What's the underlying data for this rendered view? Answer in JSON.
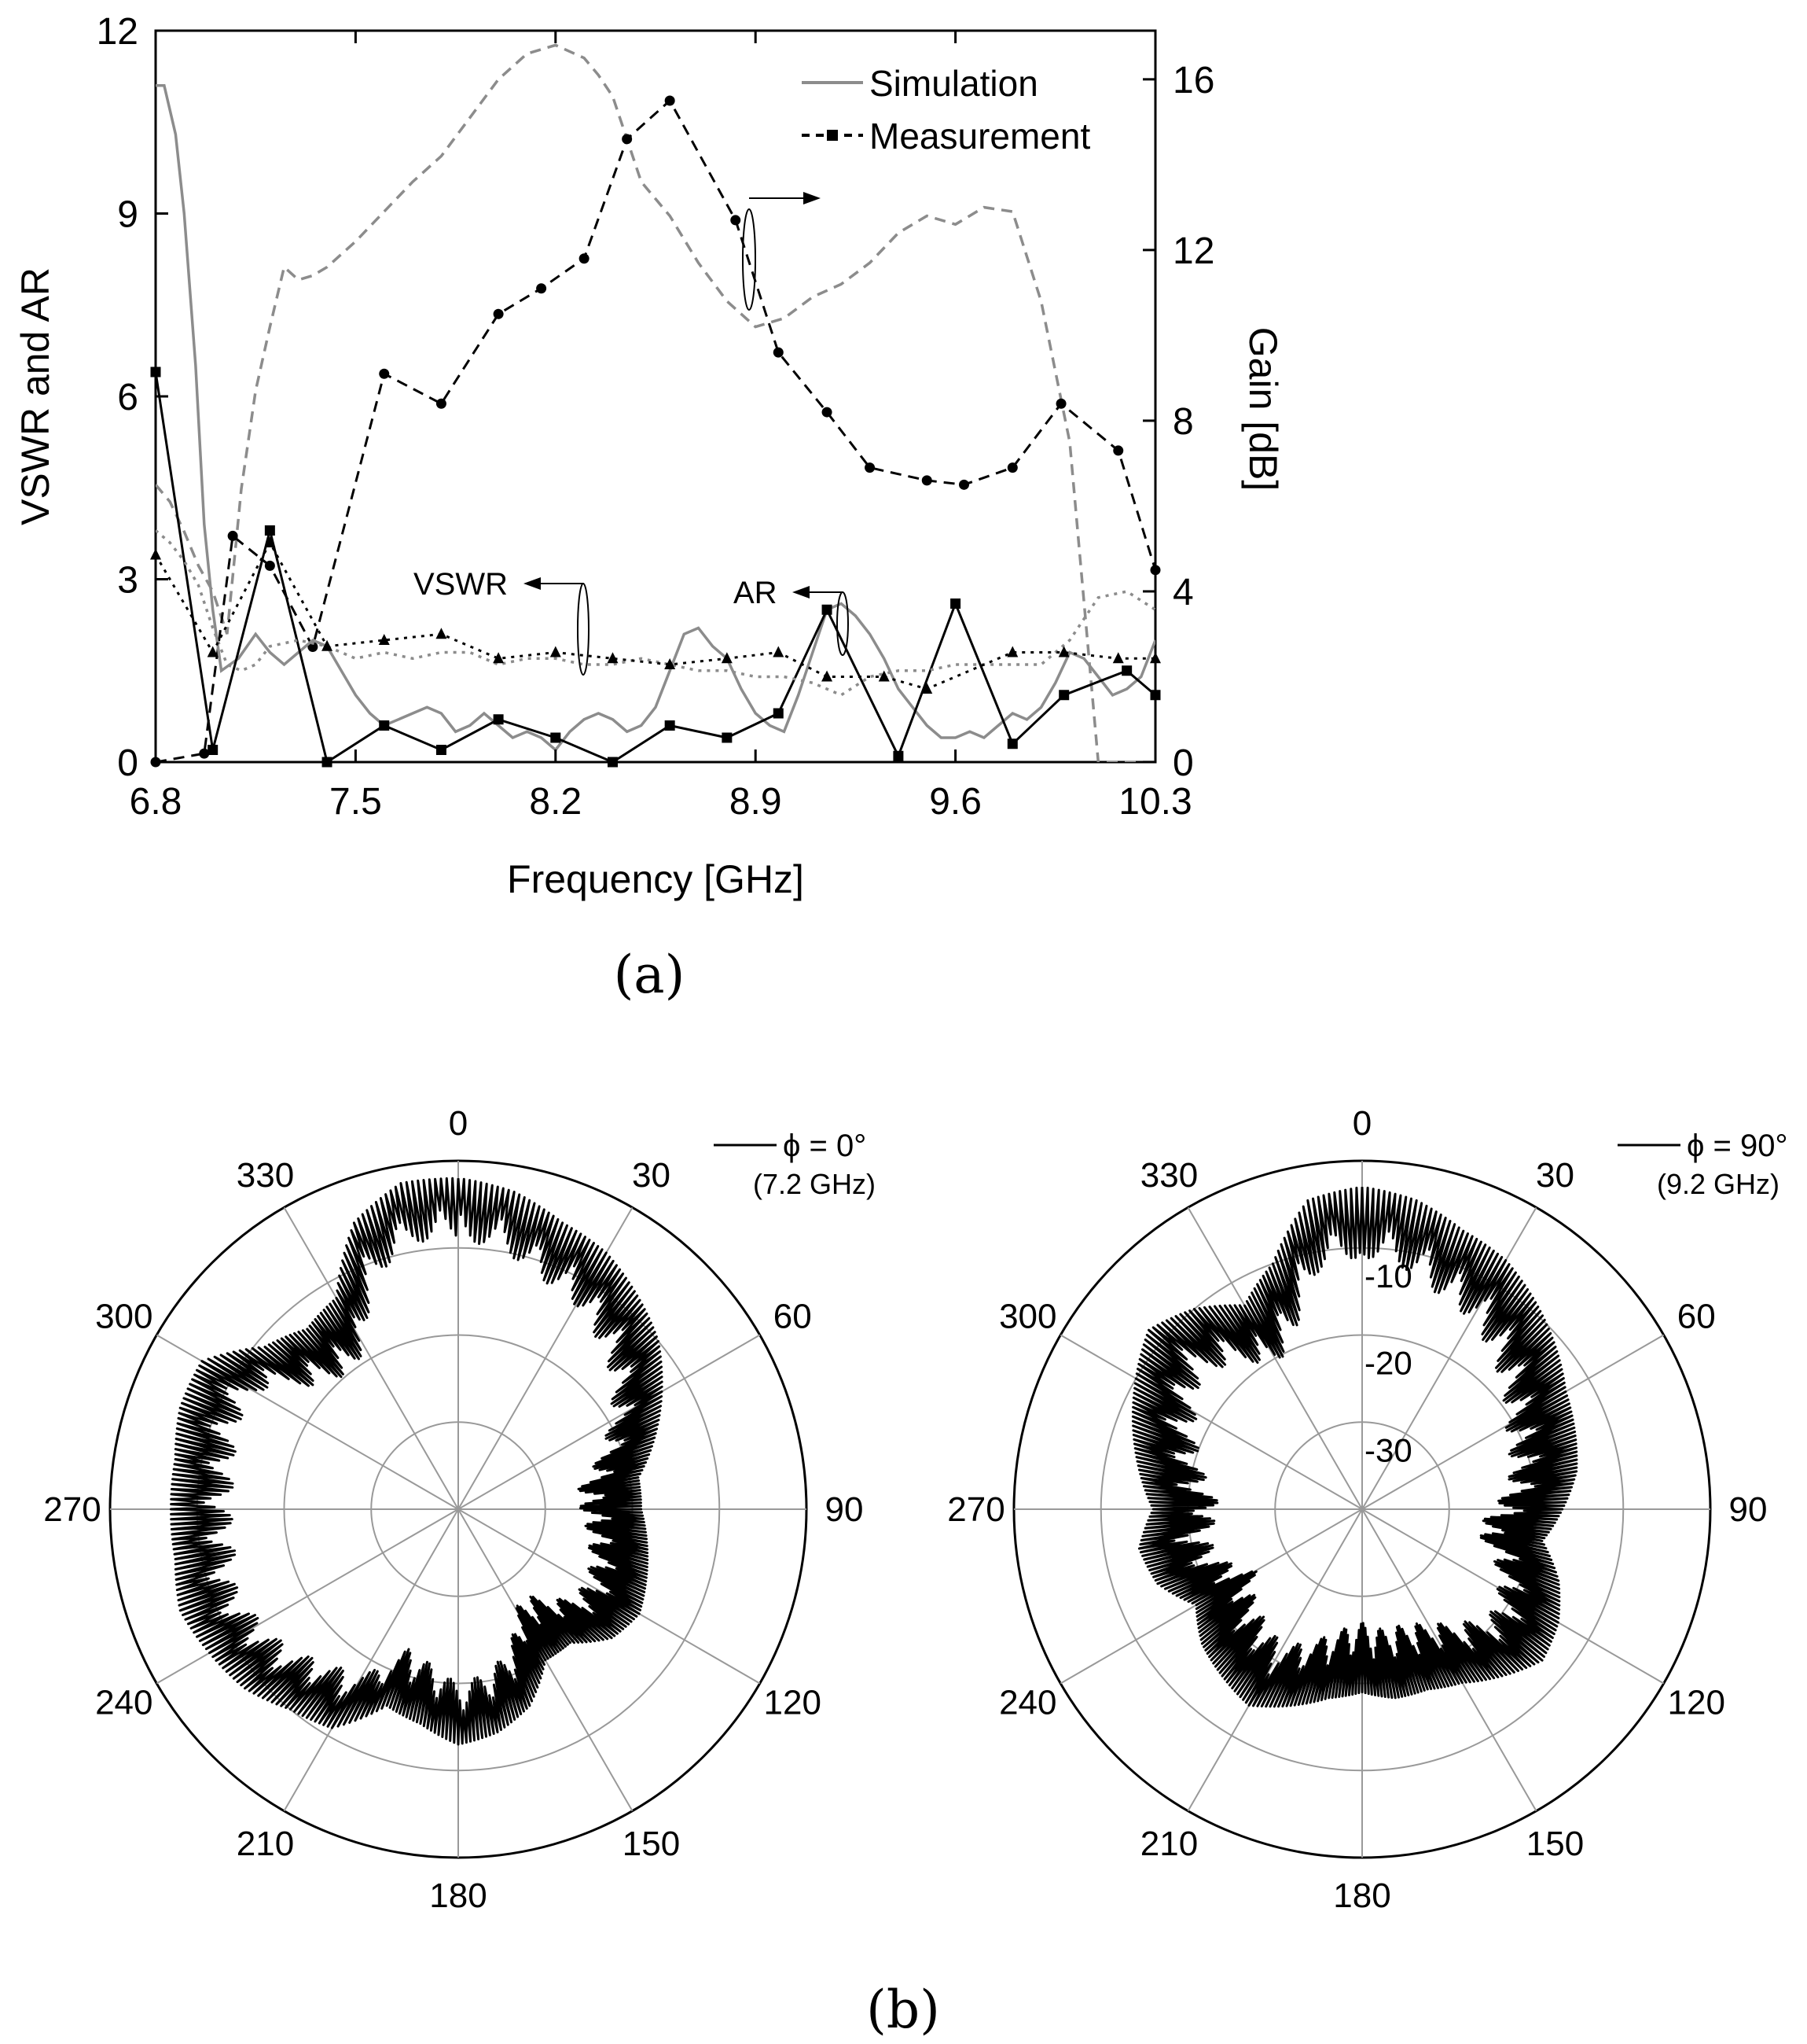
{
  "chart_data": [
    {
      "type": "line",
      "panel_label": "(a)",
      "xlabel": "Frequency [GHz]",
      "ylabel": "VSWR and AR",
      "y2label": "Gain [dB]",
      "xlim": [
        6.8,
        10.3
      ],
      "ylim": [
        0,
        12
      ],
      "y2lim": [
        0,
        17.14
      ],
      "xticks": [
        "6.8",
        "7.5",
        "8.2",
        "8.9",
        "9.6",
        "10.3"
      ],
      "xtick_values": [
        6.8,
        7.5,
        8.2,
        8.9,
        9.6,
        10.3
      ],
      "yticks": [
        "0",
        "3",
        "6",
        "9",
        "12"
      ],
      "ytick_values": [
        0,
        3,
        6,
        9,
        12
      ],
      "y2ticks": [
        "0",
        "4",
        "8",
        "12",
        "16"
      ],
      "y2tick_values": [
        0,
        4,
        8,
        12,
        16
      ],
      "legend": {
        "placement": "top-right",
        "entries": [
          {
            "label": "Simulation",
            "style": "solid-gray"
          },
          {
            "label": "Measurement",
            "style": "dashed-black-square"
          }
        ]
      },
      "annotations": [
        {
          "text": "VSWR",
          "x": 7.85,
          "y": 2.9
        },
        {
          "text": "AR",
          "x": 8.75,
          "y": 2.8
        }
      ],
      "series": [
        {
          "axis": "right",
          "color": "#8c8c8c",
          "dash": "dashed",
          "marker": "none",
          "x": [
            6.8,
            6.85,
            6.9,
            6.95,
            7.0,
            7.05,
            7.1,
            7.15,
            7.2,
            7.25,
            7.3,
            7.35,
            7.4,
            7.45,
            7.5,
            7.6,
            7.7,
            7.8,
            7.9,
            8.0,
            8.1,
            8.2,
            8.3,
            8.35,
            8.4,
            8.5,
            8.6,
            8.7,
            8.8,
            8.9,
            9.0,
            9.1,
            9.2,
            9.3,
            9.4,
            9.5,
            9.6,
            9.7,
            9.8,
            9.9,
            10.0,
            10.1,
            10.2,
            10.3
          ],
          "values": [
            6.5,
            6.1,
            5.4,
            4.6,
            4.0,
            3.0,
            6.4,
            8.7,
            10.2,
            11.6,
            11.3,
            11.4,
            11.6,
            11.9,
            12.2,
            12.9,
            13.6,
            14.2,
            15.1,
            16.0,
            16.6,
            16.8,
            16.5,
            16.1,
            15.6,
            13.6,
            12.8,
            11.7,
            10.8,
            10.2,
            10.4,
            10.9,
            11.2,
            11.7,
            12.4,
            12.8,
            12.6,
            13.0,
            12.9,
            10.8,
            7.5,
            0,
            0,
            0
          ]
        },
        {
          "axis": "right",
          "color": "#000000",
          "dash": "dashed",
          "marker": "circle",
          "x": [
            6.8,
            6.97,
            7.07,
            7.2,
            7.35,
            7.6,
            7.8,
            8.0,
            8.15,
            8.3,
            8.45,
            8.6,
            8.83,
            8.98,
            9.15,
            9.3,
            9.5,
            9.63,
            9.8,
            9.97,
            10.17,
            10.3
          ],
          "values": [
            0,
            0.2,
            5.3,
            4.6,
            2.7,
            9.1,
            8.4,
            10.5,
            11.1,
            11.8,
            14.6,
            15.5,
            12.7,
            9.6,
            8.2,
            6.9,
            6.6,
            6.5,
            6.9,
            8.4,
            7.3,
            4.5
          ]
        },
        {
          "axis": "left",
          "color": "#8c8c8c",
          "dash": "solid",
          "marker": "none",
          "x": [
            6.8,
            6.83,
            6.87,
            6.9,
            6.94,
            6.97,
            7.0,
            7.03,
            7.06,
            7.09,
            7.12,
            7.15,
            7.2,
            7.25,
            7.3,
            7.35,
            7.4,
            7.45,
            7.5,
            7.55,
            7.6,
            7.65,
            7.7,
            7.75,
            7.8,
            7.85,
            7.9,
            7.95,
            8.0,
            8.05,
            8.1,
            8.15,
            8.2,
            8.25,
            8.3,
            8.35,
            8.4,
            8.45,
            8.5,
            8.55,
            8.6,
            8.65,
            8.7,
            8.75,
            8.8,
            8.85,
            8.9,
            8.95,
            9.0,
            9.05,
            9.1,
            9.15,
            9.2,
            9.25,
            9.3,
            9.35,
            9.4,
            9.45,
            9.5,
            9.55,
            9.6,
            9.65,
            9.7,
            9.75,
            9.8,
            9.85,
            9.9,
            9.95,
            10.0,
            10.05,
            10.1,
            10.15,
            10.2,
            10.25,
            10.3
          ],
          "values": [
            11.1,
            11.1,
            10.3,
            9.0,
            6.5,
            3.9,
            2.5,
            1.5,
            1.6,
            1.7,
            1.9,
            2.1,
            1.8,
            1.6,
            1.8,
            2.0,
            1.9,
            1.5,
            1.1,
            0.8,
            0.6,
            0.7,
            0.8,
            0.9,
            0.8,
            0.5,
            0.6,
            0.8,
            0.6,
            0.4,
            0.5,
            0.4,
            0.2,
            0.5,
            0.7,
            0.8,
            0.7,
            0.5,
            0.6,
            0.9,
            1.5,
            2.1,
            2.2,
            1.9,
            1.7,
            1.2,
            0.8,
            0.6,
            0.5,
            1.1,
            1.8,
            2.5,
            2.6,
            2.4,
            2.1,
            1.7,
            1.2,
            0.9,
            0.6,
            0.4,
            0.4,
            0.5,
            0.4,
            0.6,
            0.8,
            0.7,
            0.9,
            1.3,
            1.8,
            1.7,
            1.4,
            1.1,
            1.2,
            1.4,
            2.0
          ]
        },
        {
          "axis": "left",
          "color": "#000000",
          "dash": "solid",
          "marker": "square",
          "x": [
            6.8,
            7.0,
            7.2,
            7.4,
            7.6,
            7.8,
            8.0,
            8.2,
            8.4,
            8.6,
            8.8,
            8.98,
            9.15,
            9.4,
            9.6,
            9.8,
            9.98,
            10.2,
            10.3
          ],
          "values": [
            6.4,
            0.2,
            3.8,
            0.0,
            0.6,
            0.2,
            0.7,
            0.4,
            0.0,
            0.6,
            0.4,
            0.8,
            2.5,
            0.1,
            2.6,
            0.3,
            1.1,
            1.5,
            1.1
          ]
        },
        {
          "axis": "left",
          "color": "#8c8c8c",
          "dash": "dotted",
          "marker": "none",
          "x": [
            6.8,
            6.85,
            6.9,
            6.95,
            7.0,
            7.05,
            7.1,
            7.15,
            7.2,
            7.3,
            7.4,
            7.5,
            7.6,
            7.7,
            7.8,
            7.9,
            8.0,
            8.1,
            8.2,
            8.3,
            8.4,
            8.5,
            8.6,
            8.7,
            8.8,
            8.9,
            9.0,
            9.1,
            9.2,
            9.3,
            9.4,
            9.5,
            9.6,
            9.7,
            9.8,
            9.9,
            10.0,
            10.1,
            10.2,
            10.3
          ],
          "values": [
            3.8,
            3.6,
            3.3,
            2.9,
            2.2,
            1.6,
            1.5,
            1.6,
            1.9,
            2.0,
            1.9,
            1.7,
            1.8,
            1.7,
            1.8,
            1.8,
            1.6,
            1.7,
            1.7,
            1.6,
            1.6,
            1.7,
            1.6,
            1.5,
            1.5,
            1.4,
            1.4,
            1.3,
            1.1,
            1.4,
            1.5,
            1.5,
            1.6,
            1.6,
            1.6,
            1.6,
            2.0,
            2.7,
            2.8,
            2.5
          ]
        },
        {
          "axis": "left",
          "color": "#000000",
          "dash": "dotted",
          "marker": "triangle",
          "x": [
            6.8,
            7.0,
            7.2,
            7.4,
            7.6,
            7.8,
            8.0,
            8.2,
            8.4,
            8.6,
            8.8,
            8.98,
            9.15,
            9.35,
            9.5,
            9.8,
            9.98,
            10.17,
            10.3
          ],
          "values": [
            3.4,
            1.8,
            3.6,
            1.9,
            2.0,
            2.1,
            1.7,
            1.8,
            1.7,
            1.6,
            1.7,
            1.8,
            1.4,
            1.4,
            1.2,
            1.8,
            1.8,
            1.7,
            1.7
          ]
        }
      ]
    },
    {
      "type": "polar",
      "panel_label": "(b)",
      "plots": [
        {
          "legend": {
            "label": "ϕ = 0°",
            "sub": "(7.2 GHz)"
          },
          "angle_labels": [
            "0",
            "30",
            "60",
            "90",
            "120",
            "150",
            "180",
            "210",
            "240",
            "270",
            "300",
            "330"
          ],
          "radial_labels": [],
          "r_min_db": -40,
          "r_max_db": 0,
          "envelope_deg": [
            0,
            10,
            20,
            30,
            40,
            50,
            60,
            70,
            80,
            90,
            100,
            110,
            120,
            130,
            140,
            150,
            160,
            170,
            180,
            190,
            200,
            210,
            220,
            230,
            240,
            250,
            260,
            270,
            280,
            290,
            300,
            310,
            320,
            330,
            340,
            350
          ],
          "envelope_db": [
            -2,
            -3,
            -5,
            -6,
            -8,
            -10,
            -13,
            -16,
            -19,
            -19,
            -18,
            -17,
            -16,
            -17,
            -20,
            -20,
            -16,
            -14,
            -13,
            -15,
            -16,
            -11,
            -10,
            -8,
            -7,
            -6,
            -7,
            -7,
            -7,
            -6,
            -6,
            -11,
            -13,
            -12,
            -5,
            -2
          ],
          "ripple_db": 7
        },
        {
          "legend": {
            "label": "ϕ = 90°",
            "sub": "(9.2 GHz)"
          },
          "angle_labels": [
            "0",
            "30",
            "60",
            "90",
            "120",
            "150",
            "180",
            "210",
            "240",
            "270",
            "300",
            "330"
          ],
          "radial_labels": [
            "-10",
            "-20",
            "-30"
          ],
          "r_min_db": -40,
          "r_max_db": 0,
          "envelope_deg": [
            0,
            10,
            20,
            30,
            40,
            50,
            60,
            70,
            80,
            90,
            100,
            110,
            120,
            130,
            140,
            150,
            160,
            170,
            180,
            190,
            200,
            210,
            220,
            230,
            240,
            250,
            260,
            270,
            280,
            290,
            300,
            310,
            320,
            330,
            340,
            350
          ],
          "envelope_db": [
            -3,
            -4,
            -6,
            -7,
            -9,
            -11,
            -13,
            -14,
            -15,
            -17,
            -19,
            -16,
            -14,
            -13,
            -15,
            -17,
            -18,
            -18,
            -19,
            -18,
            -16,
            -14,
            -15,
            -16,
            -18,
            -15,
            -14,
            -16,
            -14,
            -12,
            -10,
            -8,
            -10,
            -13,
            -10,
            -4
          ],
          "ripple_db": 8
        }
      ]
    }
  ]
}
